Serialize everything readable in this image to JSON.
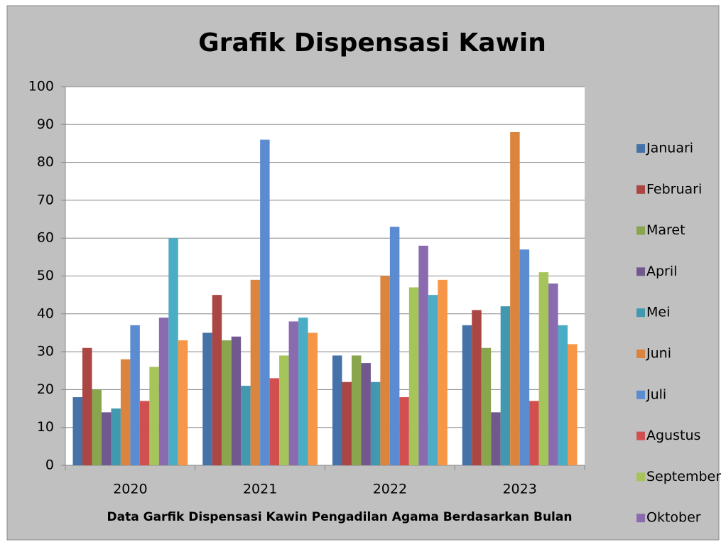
{
  "chart_data": {
    "type": "bar",
    "title": "Grafik Dispensasi Kawin",
    "x_label": "Data Garfik Dispensasi Kawin Pengadilan Agama Berdasarkan Bulan",
    "categories": [
      "2020",
      "2021",
      "2022",
      "2023"
    ],
    "series": [
      {
        "name": "Januari",
        "color": "#4572a7",
        "values": [
          18,
          35,
          29,
          37
        ]
      },
      {
        "name": "Februari",
        "color": "#aa4643",
        "values": [
          31,
          45,
          22,
          41
        ]
      },
      {
        "name": "Maret",
        "color": "#89a54e",
        "values": [
          20,
          33,
          29,
          31
        ]
      },
      {
        "name": "April",
        "color": "#71588f",
        "values": [
          14,
          34,
          27,
          14
        ]
      },
      {
        "name": "Mei",
        "color": "#4198af",
        "values": [
          15,
          21,
          22,
          42
        ]
      },
      {
        "name": "Juni",
        "color": "#db843d",
        "values": [
          28,
          49,
          50,
          88
        ]
      },
      {
        "name": "Juli",
        "color": "#5b8bd0",
        "values": [
          37,
          86,
          63,
          57
        ]
      },
      {
        "name": "Agustus",
        "color": "#d1504f",
        "values": [
          17,
          23,
          18,
          17
        ]
      },
      {
        "name": "September",
        "color": "#a5c459",
        "values": [
          26,
          29,
          47,
          51
        ]
      },
      {
        "name": "Oktober",
        "color": "#8a6bb0",
        "values": [
          39,
          38,
          58,
          48
        ]
      },
      {
        "color": "#4bacc6",
        "values": [
          60,
          39,
          45,
          37
        ]
      },
      {
        "color": "#f79646",
        "values": [
          33,
          35,
          49,
          32
        ]
      }
    ],
    "ylim": [
      0,
      100
    ],
    "yticks": [
      0,
      10,
      20,
      30,
      40,
      50,
      60,
      70,
      80,
      90,
      100
    ],
    "grid": true,
    "legend": "right"
  }
}
